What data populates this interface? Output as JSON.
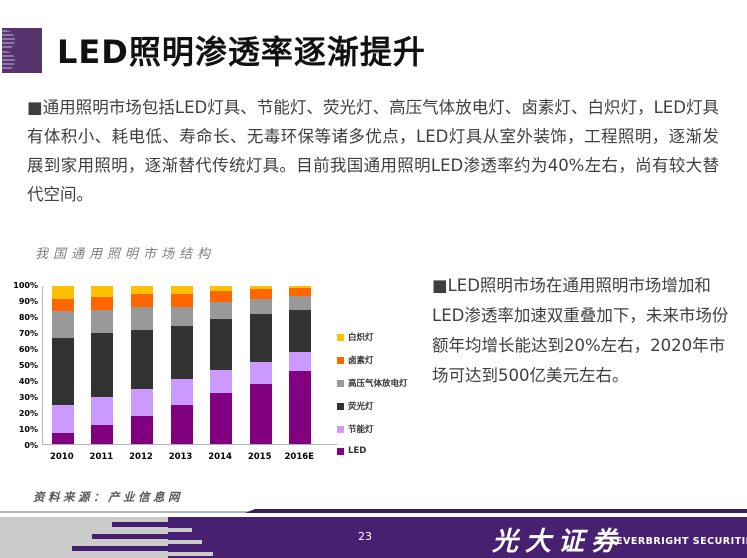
{
  "slide": {
    "title": "LED照明渗透率逐渐提升",
    "body_text": "■通用照明市场包括LED灯具、节能灯、荧光灯、高压气体放电灯、卤素灯、白炽灯，LED灯具有体积小、耗电低、寿命长、无毒环保等诸多优点，LED灯具从室外装饰，工程照明，逐渐发展到家用照明，逐渐替代传统灯具。目前我国通用照明LED渗透率约为40%左右，尚有较大替代空间。",
    "right_text": "■LED照明市场在通用照明市场增加和LED渗透率加速双重叠加下，未来市场份额年均增长能达到20%左右，2020年市场可达到500亿美元左右。",
    "source_note": "资料来源：产业信息网",
    "footer": {
      "page_number": "23",
      "brand_cn": "光大证券",
      "brand_en": "EVERBRIGHT SECURITIES"
    }
  },
  "chart_data": {
    "type": "bar",
    "subtype": "stacked-100-percent",
    "title": "我国通用照明市场结构",
    "categories": [
      "2010",
      "2011",
      "2012",
      "2013",
      "2014",
      "2015",
      "2016E"
    ],
    "series": [
      {
        "name": "LED",
        "color": "#800080",
        "values": [
          7,
          12,
          18,
          25,
          32,
          38,
          46
        ]
      },
      {
        "name": "节能灯",
        "color": "#CC99FF",
        "values": [
          18,
          18,
          17,
          16,
          15,
          14,
          12
        ]
      },
      {
        "name": "荧光灯",
        "color": "#333333",
        "values": [
          42,
          40,
          37,
          34,
          32,
          30,
          27
        ]
      },
      {
        "name": "高压气体放电灯",
        "color": "#999999",
        "values": [
          17,
          15,
          15,
          12,
          11,
          10,
          9
        ]
      },
      {
        "name": "卤素灯",
        "color": "#FF6600",
        "values": [
          8,
          8,
          8,
          8,
          7,
          6,
          5
        ]
      },
      {
        "name": "白炽灯",
        "color": "#FFC000",
        "values": [
          8,
          7,
          5,
          5,
          3,
          2,
          1
        ]
      }
    ],
    "y_ticks": [
      "100%",
      "90%",
      "80%",
      "70%",
      "60%",
      "50%",
      "40%",
      "30%",
      "20%",
      "10%",
      "0%"
    ],
    "ylim": [
      0,
      100
    ],
    "ylabel": "",
    "xlabel": "",
    "grid": false,
    "legend_position": "right",
    "legend_order_top_to_bottom": [
      "白炽灯",
      "卤素灯",
      "高压气体放电灯",
      "荧光灯",
      "节能灯",
      "LED"
    ]
  },
  "colors": {
    "footer_purple": "#482071",
    "logo_purple": "#56356F",
    "divider_purple": "#3A1E5E",
    "footer_gray": "#cbcbcb",
    "body_text": "#3f3f3f",
    "title_text": "#111111"
  }
}
